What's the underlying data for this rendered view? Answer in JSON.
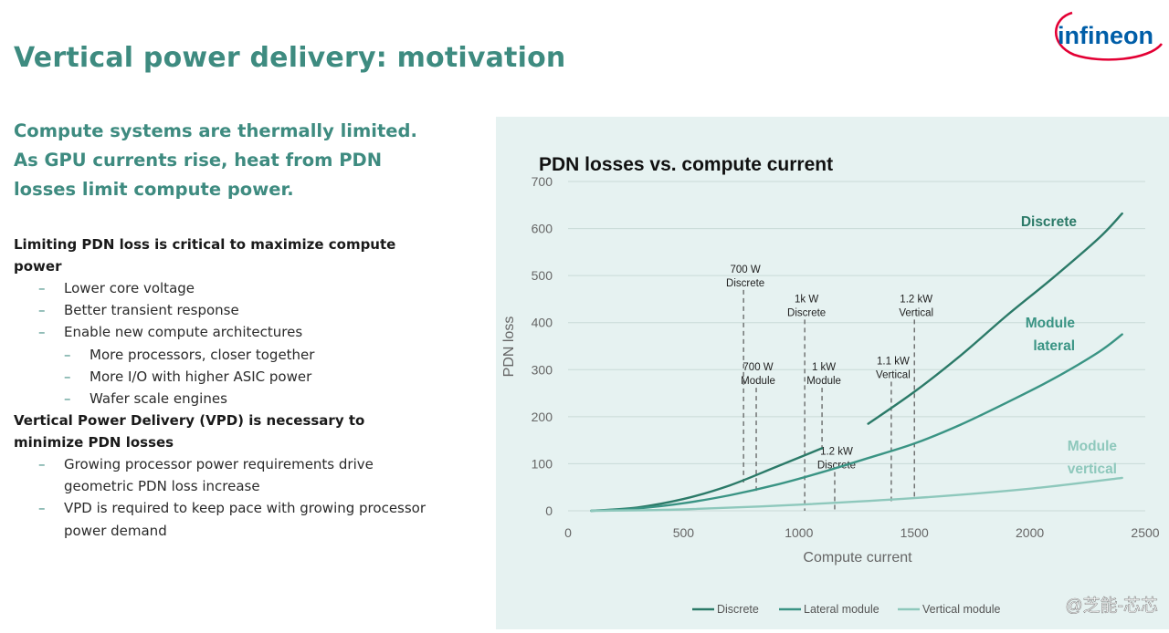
{
  "slide": {
    "title": "Vertical power delivery: motivation",
    "lead": "Compute systems are thermally limited. As GPU currents rise, heat from PDN losses limit compute power.",
    "logo_text": "infineon"
  },
  "sections": [
    {
      "heading": "Limiting PDN loss is critical to maximize compute power",
      "bullets": [
        {
          "level": 1,
          "text": "Lower core voltage"
        },
        {
          "level": 1,
          "text": "Better transient response"
        },
        {
          "level": 1,
          "text": "Enable new compute architectures"
        },
        {
          "level": 2,
          "text": "More processors, closer together"
        },
        {
          "level": 2,
          "text": "More I/O with higher ASIC power"
        },
        {
          "level": 2,
          "text": "Wafer scale engines"
        }
      ]
    },
    {
      "heading": "Vertical Power Delivery (VPD) is necessary to minimize PDN losses",
      "bullets": [
        {
          "level": 1,
          "text": "Growing processor power requirements drive geometric PDN loss increase"
        },
        {
          "level": 1,
          "text": "VPD is required to keep pace with growing processor power demand"
        }
      ]
    }
  ],
  "colors": {
    "accent": "#3e8b80",
    "panel_bg": "#e6f2f1",
    "discrete": "#2b7a68",
    "lateral": "#3a9484",
    "vertical": "#8ec8bc",
    "logo_swoosh": "#e30034",
    "logo_text": "#005ea8"
  },
  "watermark": "@芝能-芯芯",
  "chart_data": {
    "type": "line",
    "title": "PDN losses vs. compute current",
    "xlabel": "Compute current",
    "ylabel": "PDN loss",
    "xlim": [
      0,
      2500
    ],
    "ylim": [
      0,
      700
    ],
    "xticks": [
      0,
      500,
      1000,
      1500,
      2000,
      2500
    ],
    "yticks": [
      0,
      100,
      200,
      300,
      400,
      500,
      600,
      700
    ],
    "grid": "horizontal",
    "legend_position": "bottom",
    "series": [
      {
        "name": "Discrete",
        "label": "Discrete",
        "color": "#2b7a68",
        "x": [
          100,
          300,
          500,
          700,
          900,
          1100
        ],
        "y": [
          0,
          7,
          25,
          54,
          93,
          133
        ],
        "segment2": {
          "x": [
            1300,
            1500,
            1700,
            1900,
            2100,
            2300,
            2400
          ],
          "y": [
            185,
            253,
            330,
            415,
            495,
            580,
            632
          ]
        }
      },
      {
        "name": "Lateral module",
        "label": "Module lateral",
        "color": "#3a9484",
        "x": [
          100,
          300,
          500,
          700,
          900,
          1100,
          1300,
          1500,
          1700,
          1900,
          2100,
          2300,
          2400
        ],
        "y": [
          0,
          5,
          16,
          33,
          55,
          82,
          112,
          143,
          183,
          230,
          280,
          338,
          375
        ]
      },
      {
        "name": "Vertical module",
        "label": "Module vertical",
        "color": "#8ec8bc",
        "x": [
          100,
          500,
          1000,
          1500,
          2000,
          2400
        ],
        "y": [
          0,
          3,
          13,
          27,
          47,
          70
        ]
      }
    ],
    "annotations": [
      {
        "lines": [
          "700 W",
          "Discrete"
        ],
        "x": 760,
        "y_top": 485,
        "y_bottom": 60
      },
      {
        "lines": [
          "700 W",
          "Module"
        ],
        "x": 815,
        "y_top": 277,
        "y_bottom": 38
      },
      {
        "lines": [
          "1k W",
          "Discrete"
        ],
        "x": 1025,
        "y_top": 422,
        "y_bottom": 0
      },
      {
        "lines": [
          "1 kW",
          "Module"
        ],
        "x": 1100,
        "y_top": 277,
        "y_bottom": 130
      },
      {
        "lines": [
          "1.2 kW",
          "Discrete"
        ],
        "x": 1155,
        "y_top": 98,
        "y_bottom": 0
      },
      {
        "lines": [
          "1.1 kW",
          "Vertical"
        ],
        "x": 1400,
        "y_top": 290,
        "y_bottom": 20
      },
      {
        "lines": [
          "1.2 kW",
          "Vertical"
        ],
        "x": 1500,
        "y_top": 422,
        "y_bottom": 25
      }
    ]
  }
}
